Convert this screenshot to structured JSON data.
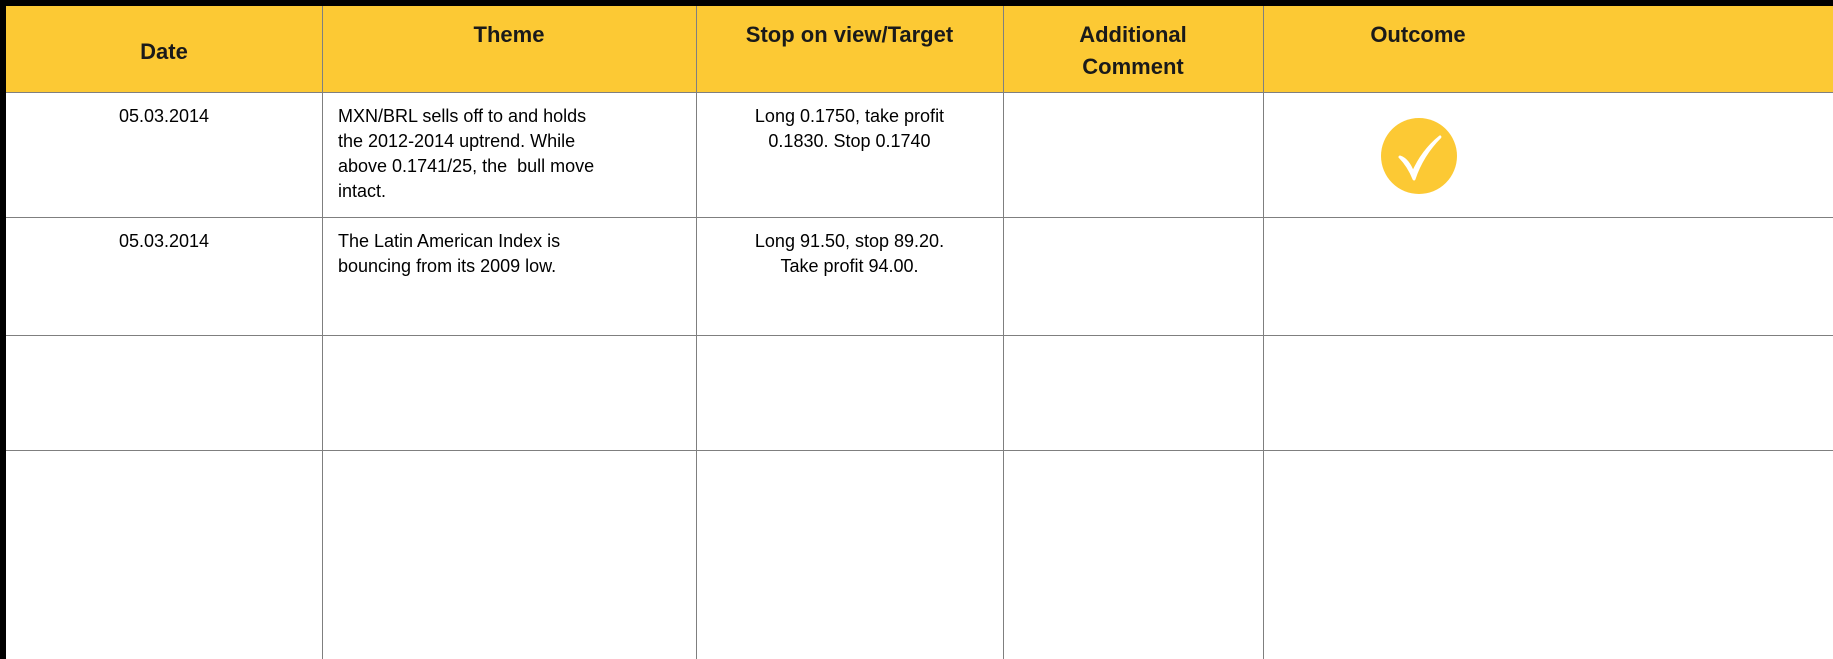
{
  "table": {
    "header": [
      "Date",
      "Theme",
      "Stop on view/Target",
      [
        "Additional",
        "Comment"
      ],
      "Outcome"
    ],
    "rows": [
      {
        "date": "05.03.2014",
        "theme": [
          "MXN/BRL sells off to and holds",
          "the 2012-2014 uptrend. While",
          "above 0.1741/25, the  bull move",
          "intact."
        ],
        "stop": [
          "Long 0.1750, take profit",
          "0.1830. Stop 0.1740"
        ]
      },
      {
        "date": "05.03.2014",
        "theme": [
          "The Latin American Index is",
          "bouncing from its 2009 low."
        ],
        "stop": [
          "Long 91.50, stop 89.20.",
          "Take profit 94.00."
        ]
      }
    ]
  }
}
